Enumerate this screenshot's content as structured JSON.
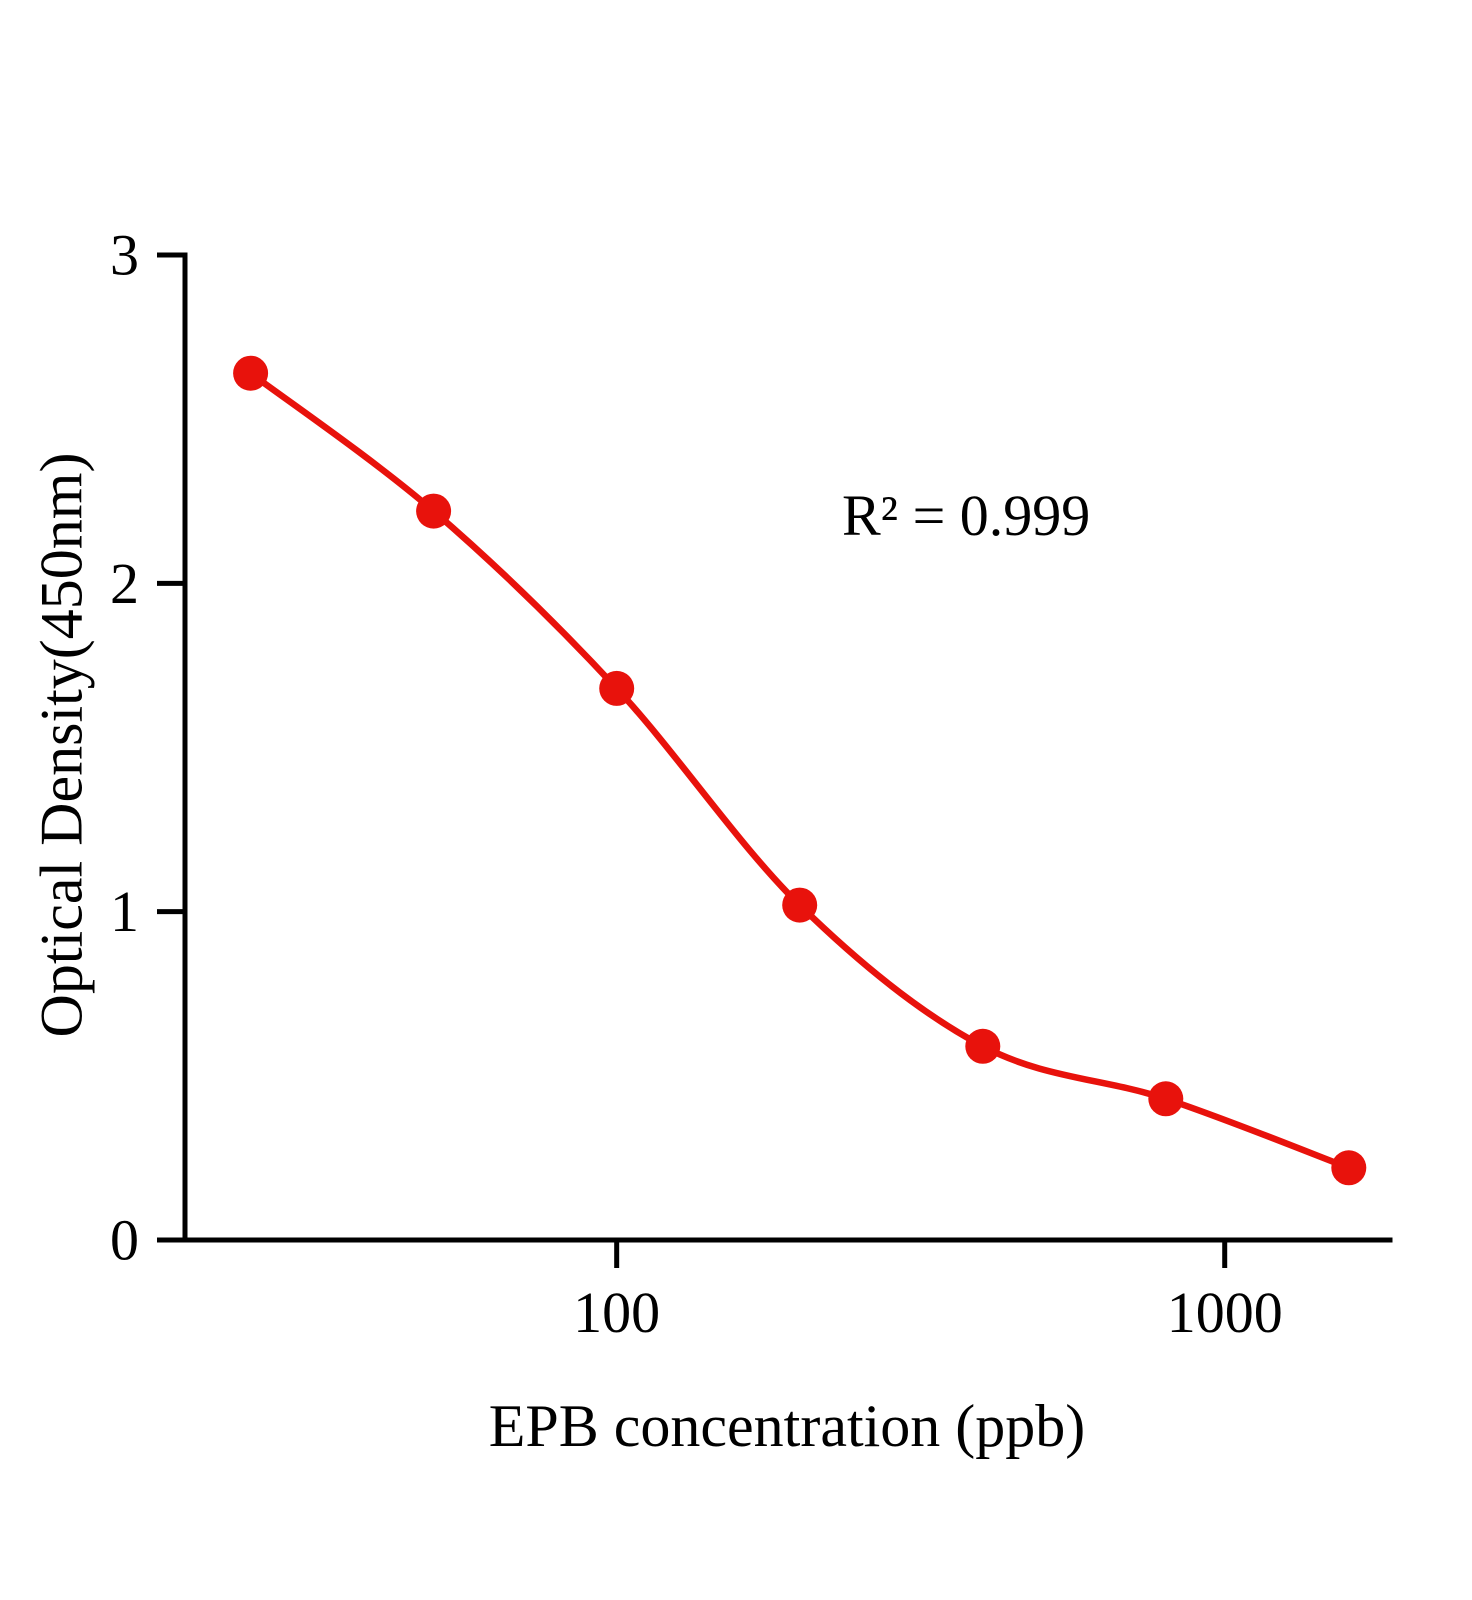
{
  "chart_data": {
    "type": "scatter",
    "x_scale": "log",
    "x": [
      25,
      50,
      100,
      200,
      400,
      800,
      1600
    ],
    "y": [
      2.64,
      2.22,
      1.68,
      1.02,
      0.59,
      0.43,
      0.22
    ],
    "curve": "smooth sigmoidal fit through points",
    "title": "",
    "xlabel": "EPB concentration (ppb)",
    "ylabel": "Optical Density(450nm)",
    "annotation": "R² = 0.999",
    "xlim": [
      19.5,
      1870
    ],
    "ylim": [
      0,
      3
    ],
    "xticks": [
      100,
      1000
    ],
    "yticks": [
      0,
      1,
      2,
      3
    ],
    "grid": false,
    "legend": false,
    "point_color": "#e8120c",
    "line_color": "#e8120c",
    "axis_color": "#000000"
  }
}
